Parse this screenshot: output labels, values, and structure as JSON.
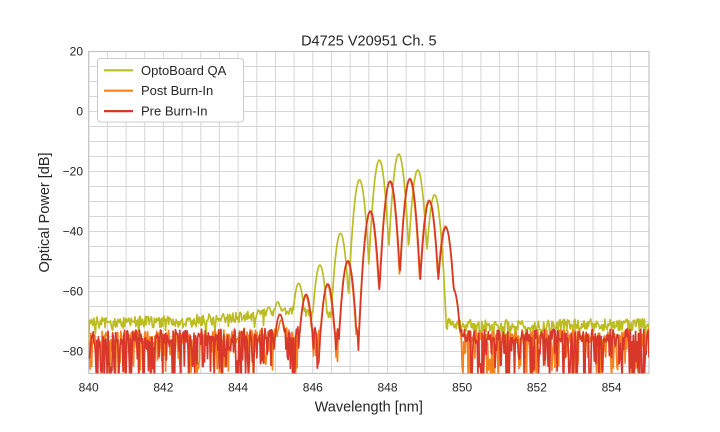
{
  "figure": {
    "title": "D4725 V20951 Ch. 5",
    "background": "#ffffff",
    "text_color": "#262626",
    "grid_color": "#d6d6d6",
    "spine_color": "#c4c4c4",
    "legend_border_color": "#cccccc",
    "legend_background": "#ffffff"
  },
  "chart_data": {
    "type": "line",
    "title": "D4725 V20951 Ch. 5",
    "xlabel": "Wavelength [nm]",
    "ylabel": "Optical Power [dB]",
    "xlim": [
      840,
      855
    ],
    "ylim": [
      -87.3,
      20
    ],
    "x_ticks": [
      840,
      842,
      844,
      846,
      848,
      850,
      852,
      854
    ],
    "y_ticks": [
      20,
      0,
      -20,
      -40,
      -60,
      -80
    ],
    "grid": {
      "on": true,
      "x_step": 0.5,
      "y_step": 5
    },
    "legend_position": "upper left",
    "sample_step_nm": 0.02,
    "description": "Optical spectra of VCSEL channel: lasing mode comb centered near 848.5 nm above a noise floor; three measurement stages overlaid.",
    "series": [
      {
        "name": "OptoBoard QA",
        "color": "#bcbd22",
        "line_width": 1.7,
        "seed": 7,
        "mode_half_width_nm": 0.25,
        "valley_depth_db": 28,
        "modes": [
          [
            844.55,
            -66.5
          ],
          [
            844.82,
            -65.2
          ],
          [
            845.06,
            -63.5
          ],
          [
            845.62,
            -57.3
          ],
          [
            846.19,
            -51.2
          ],
          [
            846.74,
            -40.6
          ],
          [
            847.25,
            -22.8
          ],
          [
            847.78,
            -16.2
          ],
          [
            848.3,
            -14.2
          ],
          [
            848.81,
            -19.5
          ],
          [
            849.26,
            -27.8
          ]
        ],
        "noise_stops": [
          [
            840.0,
            -70.5,
            2.1
          ],
          [
            842.5,
            -70.0,
            2.1
          ],
          [
            844.2,
            -68.5,
            1.8
          ],
          [
            845.2,
            -66.2,
            1.5
          ],
          [
            846.3,
            -67.5,
            1.5
          ],
          [
            849.6,
            -70.8,
            1.9
          ],
          [
            850.5,
            -71.5,
            2.0
          ],
          [
            855.0,
            -71.0,
            2.1
          ]
        ],
        "spike_prob": 0.08,
        "spike_depth_db": 5
      },
      {
        "name": "Post Burn-In",
        "color": "#f5821f",
        "line_width": 1.7,
        "seed": 13,
        "mode_half_width_nm": 0.27,
        "valley_depth_db": 33,
        "modes": [
          [
            845.16,
            -69.5
          ],
          [
            845.81,
            -61.5
          ],
          [
            846.39,
            -57.9
          ],
          [
            846.93,
            -50.3
          ],
          [
            847.53,
            -33.6
          ],
          [
            848.06,
            -23.5
          ],
          [
            848.59,
            -22.7
          ],
          [
            849.11,
            -29.6
          ],
          [
            849.55,
            -38.2
          ],
          [
            849.76,
            -59.0
          ]
        ],
        "noise_stops": [
          [
            840.0,
            -75.6,
            2.3
          ],
          [
            844.8,
            -74.8,
            2.3
          ],
          [
            845.6,
            -74.0,
            2.1
          ],
          [
            849.95,
            -75.2,
            2.3
          ],
          [
            855.0,
            -74.8,
            2.3
          ]
        ],
        "spike_prob": 0.4,
        "spike_depth_db": 15
      },
      {
        "name": "Pre Burn-In",
        "color": "#d8372a",
        "line_width": 1.7,
        "seed": 29,
        "mode_half_width_nm": 0.27,
        "valley_depth_db": 33,
        "modes": [
          [
            845.12,
            -67.6
          ],
          [
            845.82,
            -61.0
          ],
          [
            846.4,
            -57.5
          ],
          [
            846.94,
            -49.8
          ],
          [
            847.54,
            -33.2
          ],
          [
            848.07,
            -23.2
          ],
          [
            848.6,
            -22.4
          ],
          [
            849.12,
            -29.8
          ],
          [
            849.56,
            -38.6
          ],
          [
            849.77,
            -59.5
          ]
        ],
        "noise_stops": [
          [
            840.0,
            -75.4,
            2.3
          ],
          [
            844.8,
            -74.5,
            2.3
          ],
          [
            845.6,
            -73.8,
            2.1
          ],
          [
            849.95,
            -75.0,
            2.3
          ],
          [
            855.0,
            -74.6,
            2.3
          ]
        ],
        "spike_prob": 0.46,
        "spike_depth_db": 16
      }
    ]
  }
}
